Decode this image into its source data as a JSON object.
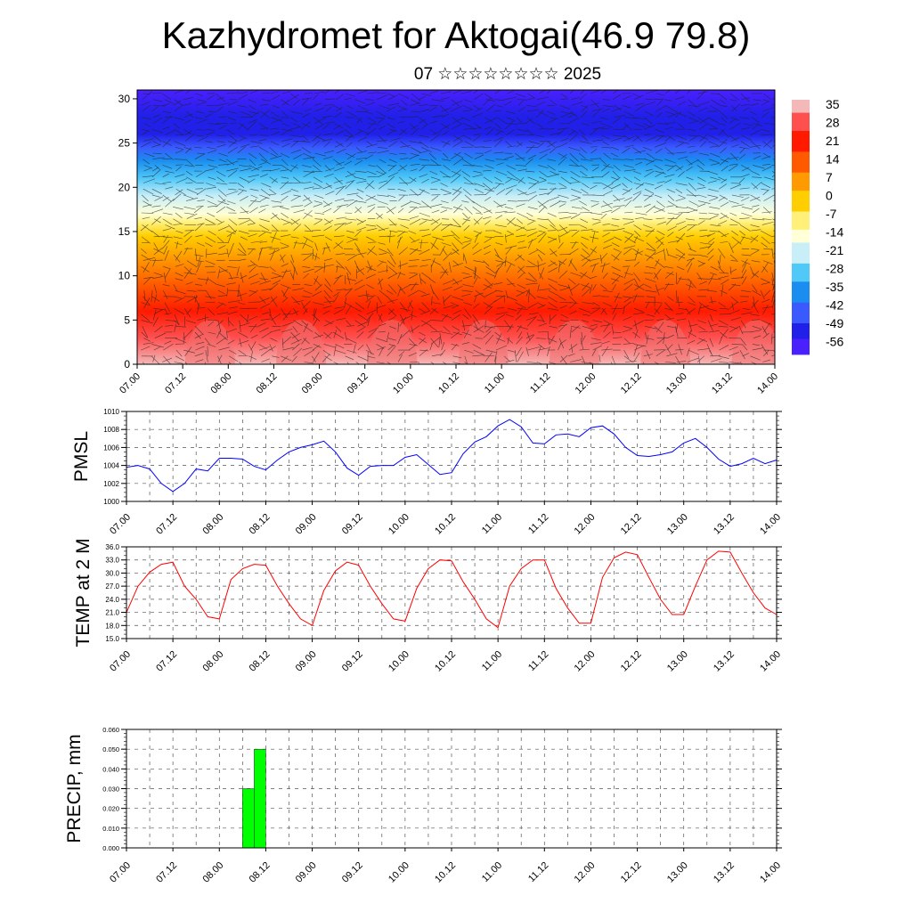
{
  "title": "Kazhydromet for Aktogai(46.9 79.8)",
  "subtitle": "07 ☆☆☆☆☆☆☆☆ 2025",
  "colors": {
    "pmsl_line": "#0000ff",
    "temp_line": "#ff0000",
    "precip_bar": "#00ff00",
    "grid": "#555555"
  },
  "chart_data": [
    {
      "type": "heatmap",
      "title": "",
      "xlabel": "",
      "ylabel": "",
      "x_ticks": [
        "07.00",
        "07.12",
        "08.00",
        "08.12",
        "09.00",
        "09.12",
        "10.00",
        "10.12",
        "11.00",
        "11.12",
        "12.00",
        "12.12",
        "13.00",
        "13.12",
        "14.00"
      ],
      "y_ticks": [
        "0",
        "5",
        "10",
        "15",
        "20",
        "25",
        "30"
      ],
      "ylim": [
        0,
        31
      ],
      "colorbar": {
        "labels": [
          "35",
          "28",
          "21",
          "14",
          "7",
          "0",
          "-7",
          "-14",
          "-21",
          "-28",
          "-35",
          "-42",
          "-49",
          "-56"
        ],
        "stops": [
          {
            "value": 38,
            "color": "#f4b8b8"
          },
          {
            "value": 33,
            "color": "#ff5050"
          },
          {
            "value": 26,
            "color": "#ff1a00"
          },
          {
            "value": 18,
            "color": "#ff5a00"
          },
          {
            "value": 10,
            "color": "#ff9a00"
          },
          {
            "value": 3,
            "color": "#ffce00"
          },
          {
            "value": -5,
            "color": "#fff07a"
          },
          {
            "value": -12,
            "color": "#ffffd8"
          },
          {
            "value": -17,
            "color": "#c8eef8"
          },
          {
            "value": -25,
            "color": "#50c8f8"
          },
          {
            "value": -32,
            "color": "#1a8ef0"
          },
          {
            "value": -40,
            "color": "#3a5aff"
          },
          {
            "value": -48,
            "color": "#2020e8"
          },
          {
            "value": -54,
            "color": "#4a20ff"
          },
          {
            "value": -60,
            "color": "#8040ff"
          }
        ]
      }
    },
    {
      "type": "line",
      "ylabel": "PMSL",
      "ylim": [
        1000,
        1010
      ],
      "y_ticks": [
        "1000",
        "1002",
        "1004",
        "1006",
        "1008",
        "1010"
      ],
      "x_ticks": [
        "07.00",
        "07.12",
        "08.00",
        "08.12",
        "09.00",
        "09.12",
        "10.00",
        "10.12",
        "11.00",
        "11.12",
        "12.00",
        "12.12",
        "13.00",
        "13.12",
        "14.00"
      ],
      "xlim": [
        0,
        28
      ],
      "x": [
        0,
        0.5,
        1,
        1.5,
        2,
        2.5,
        3,
        3.5,
        4,
        4.5,
        5,
        5.5,
        6,
        6.5,
        7,
        7.5,
        8,
        8.5,
        9,
        9.5,
        10,
        10.5,
        11,
        11.5,
        12,
        12.5,
        13,
        13.5,
        14,
        14.5,
        15,
        15.5,
        16,
        16.5,
        17,
        17.5,
        18,
        18.5,
        19,
        19.5,
        20,
        20.5,
        21,
        21.5,
        22,
        22.5,
        23,
        23.5,
        24,
        24.5,
        25,
        25.5,
        26,
        26.5,
        27,
        27.5,
        28
      ],
      "series": [
        {
          "values": [
            1003.8,
            1004.0,
            1003.6,
            1002.0,
            1001.1,
            1002.0,
            1003.6,
            1003.4,
            1004.8,
            1004.8,
            1004.7,
            1003.9,
            1003.5,
            1004.6,
            1005.5,
            1006.0,
            1006.3,
            1006.7,
            1005.5,
            1003.7,
            1002.9,
            1003.9,
            1004.0,
            1004.0,
            1004.9,
            1005.2,
            1004.1,
            1003.0,
            1003.2,
            1005.3,
            1006.6,
            1007.2,
            1008.4,
            1009.1,
            1008.3,
            1006.5,
            1006.4,
            1007.4,
            1007.5,
            1007.2,
            1008.2,
            1008.4,
            1007.5,
            1006.0,
            1005.1,
            1005.0,
            1005.2,
            1005.5,
            1006.5,
            1007.0,
            1006.0,
            1004.7,
            1003.9,
            1004.2,
            1004.8,
            1004.2,
            1004.6
          ]
        }
      ]
    },
    {
      "type": "line",
      "ylabel": "TEMP at 2 M",
      "ylim": [
        15,
        36
      ],
      "y_ticks": [
        "15.0",
        "18.0",
        "21.0",
        "24.0",
        "27.0",
        "30.0",
        "33.0",
        "36.0"
      ],
      "x_ticks": [
        "07.00",
        "07.12",
        "08.00",
        "08.12",
        "09.00",
        "09.12",
        "10.00",
        "10.12",
        "11.00",
        "11.12",
        "12.00",
        "12.12",
        "13.00",
        "13.12",
        "14.00"
      ],
      "xlim": [
        0,
        28
      ],
      "x": [
        0,
        0.5,
        1,
        1.5,
        2,
        2.5,
        3,
        3.5,
        4,
        4.5,
        5,
        5.5,
        6,
        6.5,
        7,
        7.5,
        8,
        8.5,
        9,
        9.5,
        10,
        10.5,
        11,
        11.5,
        12,
        12.5,
        13,
        13.5,
        14,
        14.5,
        15,
        15.5,
        16,
        16.5,
        17,
        17.5,
        18,
        18.5,
        19,
        19.5,
        20,
        20.5,
        21,
        21.5,
        22,
        22.5,
        23,
        23.5,
        24,
        24.5,
        25,
        25.5,
        26,
        26.5,
        27,
        27.5,
        28
      ],
      "series": [
        {
          "values": [
            21.0,
            27.0,
            30.2,
            32.0,
            32.5,
            27.0,
            24.0,
            20.0,
            19.5,
            28.5,
            31.0,
            32.0,
            31.8,
            27.0,
            23.0,
            19.5,
            18.0,
            26.0,
            30.5,
            32.5,
            31.8,
            27.0,
            23.0,
            19.5,
            19.0,
            26.5,
            31.0,
            33.0,
            32.8,
            28.0,
            24.0,
            19.5,
            17.5,
            27.0,
            31.0,
            33.0,
            33.0,
            26.5,
            22.0,
            18.5,
            18.5,
            29.0,
            33.5,
            34.8,
            34.2,
            29.0,
            24.0,
            20.5,
            20.5,
            27.0,
            33.0,
            35.0,
            34.8,
            30.0,
            25.5,
            22.0,
            20.5
          ]
        }
      ]
    },
    {
      "type": "bar",
      "ylabel": "PRECIP, mm",
      "ylim": [
        0,
        0.06
      ],
      "y_ticks": [
        "0.000",
        "0.010",
        "0.020",
        "0.030",
        "0.040",
        "0.050",
        "0.060"
      ],
      "x_ticks": [
        "07.00",
        "07.12",
        "08.00",
        "08.12",
        "09.00",
        "09.12",
        "10.00",
        "10.12",
        "11.00",
        "11.12",
        "12.00",
        "12.12",
        "13.00",
        "13.12",
        "14.00"
      ],
      "xlim": [
        0,
        28
      ],
      "bars": [
        {
          "x0": 5.0,
          "x1": 5.5,
          "value": 0.03
        },
        {
          "x0": 5.5,
          "x1": 6.0,
          "value": 0.05
        }
      ]
    }
  ]
}
